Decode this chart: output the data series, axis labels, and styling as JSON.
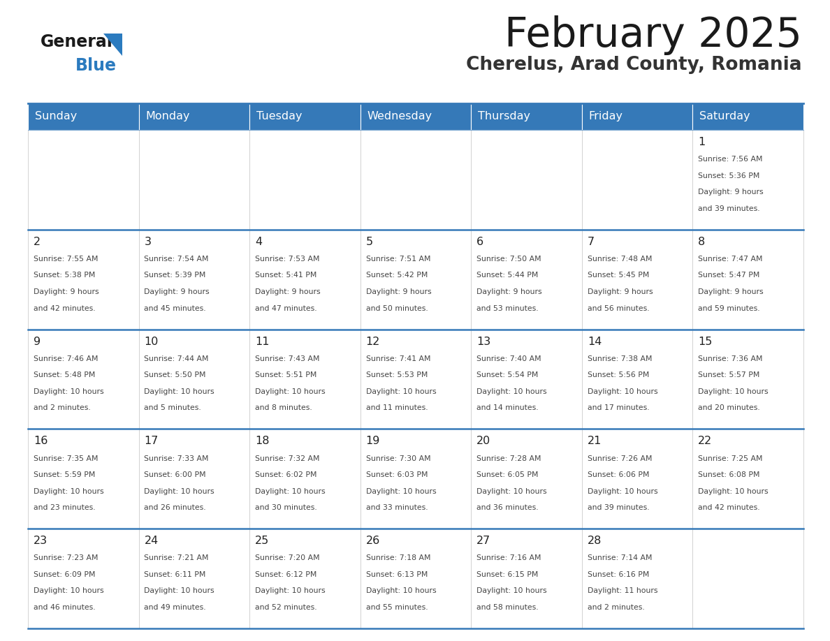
{
  "title": "February 2025",
  "subtitle": "Cherelus, Arad County, Romania",
  "header_color": "#3579b8",
  "header_text_color": "#ffffff",
  "border_color": "#3579b8",
  "cell_border_color": "#cccccc",
  "day_number_color": "#222222",
  "info_text_color": "#444444",
  "days_of_week": [
    "Sunday",
    "Monday",
    "Tuesday",
    "Wednesday",
    "Thursday",
    "Friday",
    "Saturday"
  ],
  "calendar_data": [
    [
      {
        "day": "",
        "info": ""
      },
      {
        "day": "",
        "info": ""
      },
      {
        "day": "",
        "info": ""
      },
      {
        "day": "",
        "info": ""
      },
      {
        "day": "",
        "info": ""
      },
      {
        "day": "",
        "info": ""
      },
      {
        "day": "1",
        "info": "Sunrise: 7:56 AM\nSunset: 5:36 PM\nDaylight: 9 hours\nand 39 minutes."
      }
    ],
    [
      {
        "day": "2",
        "info": "Sunrise: 7:55 AM\nSunset: 5:38 PM\nDaylight: 9 hours\nand 42 minutes."
      },
      {
        "day": "3",
        "info": "Sunrise: 7:54 AM\nSunset: 5:39 PM\nDaylight: 9 hours\nand 45 minutes."
      },
      {
        "day": "4",
        "info": "Sunrise: 7:53 AM\nSunset: 5:41 PM\nDaylight: 9 hours\nand 47 minutes."
      },
      {
        "day": "5",
        "info": "Sunrise: 7:51 AM\nSunset: 5:42 PM\nDaylight: 9 hours\nand 50 minutes."
      },
      {
        "day": "6",
        "info": "Sunrise: 7:50 AM\nSunset: 5:44 PM\nDaylight: 9 hours\nand 53 minutes."
      },
      {
        "day": "7",
        "info": "Sunrise: 7:48 AM\nSunset: 5:45 PM\nDaylight: 9 hours\nand 56 minutes."
      },
      {
        "day": "8",
        "info": "Sunrise: 7:47 AM\nSunset: 5:47 PM\nDaylight: 9 hours\nand 59 minutes."
      }
    ],
    [
      {
        "day": "9",
        "info": "Sunrise: 7:46 AM\nSunset: 5:48 PM\nDaylight: 10 hours\nand 2 minutes."
      },
      {
        "day": "10",
        "info": "Sunrise: 7:44 AM\nSunset: 5:50 PM\nDaylight: 10 hours\nand 5 minutes."
      },
      {
        "day": "11",
        "info": "Sunrise: 7:43 AM\nSunset: 5:51 PM\nDaylight: 10 hours\nand 8 minutes."
      },
      {
        "day": "12",
        "info": "Sunrise: 7:41 AM\nSunset: 5:53 PM\nDaylight: 10 hours\nand 11 minutes."
      },
      {
        "day": "13",
        "info": "Sunrise: 7:40 AM\nSunset: 5:54 PM\nDaylight: 10 hours\nand 14 minutes."
      },
      {
        "day": "14",
        "info": "Sunrise: 7:38 AM\nSunset: 5:56 PM\nDaylight: 10 hours\nand 17 minutes."
      },
      {
        "day": "15",
        "info": "Sunrise: 7:36 AM\nSunset: 5:57 PM\nDaylight: 10 hours\nand 20 minutes."
      }
    ],
    [
      {
        "day": "16",
        "info": "Sunrise: 7:35 AM\nSunset: 5:59 PM\nDaylight: 10 hours\nand 23 minutes."
      },
      {
        "day": "17",
        "info": "Sunrise: 7:33 AM\nSunset: 6:00 PM\nDaylight: 10 hours\nand 26 minutes."
      },
      {
        "day": "18",
        "info": "Sunrise: 7:32 AM\nSunset: 6:02 PM\nDaylight: 10 hours\nand 30 minutes."
      },
      {
        "day": "19",
        "info": "Sunrise: 7:30 AM\nSunset: 6:03 PM\nDaylight: 10 hours\nand 33 minutes."
      },
      {
        "day": "20",
        "info": "Sunrise: 7:28 AM\nSunset: 6:05 PM\nDaylight: 10 hours\nand 36 minutes."
      },
      {
        "day": "21",
        "info": "Sunrise: 7:26 AM\nSunset: 6:06 PM\nDaylight: 10 hours\nand 39 minutes."
      },
      {
        "day": "22",
        "info": "Sunrise: 7:25 AM\nSunset: 6:08 PM\nDaylight: 10 hours\nand 42 minutes."
      }
    ],
    [
      {
        "day": "23",
        "info": "Sunrise: 7:23 AM\nSunset: 6:09 PM\nDaylight: 10 hours\nand 46 minutes."
      },
      {
        "day": "24",
        "info": "Sunrise: 7:21 AM\nSunset: 6:11 PM\nDaylight: 10 hours\nand 49 minutes."
      },
      {
        "day": "25",
        "info": "Sunrise: 7:20 AM\nSunset: 6:12 PM\nDaylight: 10 hours\nand 52 minutes."
      },
      {
        "day": "26",
        "info": "Sunrise: 7:18 AM\nSunset: 6:13 PM\nDaylight: 10 hours\nand 55 minutes."
      },
      {
        "day": "27",
        "info": "Sunrise: 7:16 AM\nSunset: 6:15 PM\nDaylight: 10 hours\nand 58 minutes."
      },
      {
        "day": "28",
        "info": "Sunrise: 7:14 AM\nSunset: 6:16 PM\nDaylight: 11 hours\nand 2 minutes."
      },
      {
        "day": "",
        "info": ""
      }
    ]
  ]
}
